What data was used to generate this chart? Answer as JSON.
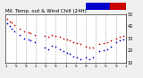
{
  "title": "Mil. Temp. out & Wind Chill (24H)",
  "background_color": "#f0f0f0",
  "plot_bg_color": "#ffffff",
  "grid_color": "#aaaaaa",
  "ylim": [
    10,
    50
  ],
  "xlim": [
    0,
    48
  ],
  "ylabel_fontsize": 3.5,
  "xlabel_fontsize": 3.0,
  "title_fontsize": 4.0,
  "legend_blue": "#0000cc",
  "legend_red": "#cc0000",
  "temp_color": "#cc0000",
  "windchill_color": "#0000cc",
  "temp_points_x": [
    0.5,
    1.5,
    2.5,
    3.5,
    5.5,
    7.5,
    9.0,
    10.0,
    11.5,
    15.5,
    17.0,
    18.5,
    20.0,
    21.5,
    23.0,
    24.5,
    25.5,
    27.0,
    28.5,
    30.0,
    32.0,
    33.5,
    35.0,
    37.5,
    39.0,
    40.5,
    42.0,
    44.0,
    45.5,
    47.0
  ],
  "temp_points_y": [
    46,
    44,
    43,
    41,
    38,
    36,
    35,
    34,
    33,
    32,
    31,
    33,
    32,
    31,
    30,
    29,
    28,
    27,
    26,
    25,
    23,
    22,
    22,
    25,
    26,
    27,
    28,
    30,
    31,
    32
  ],
  "wc_points_x": [
    0.5,
    1.5,
    2.5,
    3.5,
    5.5,
    7.5,
    9.0,
    10.0,
    11.5,
    15.5,
    17.0,
    18.5,
    20.0,
    21.5,
    23.0,
    24.5,
    25.5,
    27.0,
    28.5,
    30.0,
    32.0,
    33.5,
    35.0,
    37.5,
    39.0,
    40.5,
    42.0,
    44.0,
    45.5,
    47.0
  ],
  "wc_points_y": [
    42,
    40,
    38,
    36,
    33,
    30,
    29,
    28,
    27,
    22,
    21,
    24,
    23,
    21,
    19,
    18,
    17,
    15,
    14,
    13,
    14,
    13,
    14,
    19,
    20,
    21,
    23,
    27,
    28,
    29
  ],
  "yticks": [
    10,
    20,
    30,
    40,
    50
  ],
  "xticks": [
    0,
    4,
    8,
    12,
    16,
    20,
    24,
    28,
    32,
    36,
    40,
    44,
    48
  ],
  "xtick_labels": [
    "1",
    "5",
    "9",
    "1",
    "5",
    "9",
    "1",
    "5",
    "9",
    "1",
    "5",
    "9",
    "1"
  ],
  "ytick_labels": [
    "10",
    "20",
    "30",
    "40",
    "50"
  ],
  "vgrid_xticks": [
    4,
    8,
    12,
    16,
    20,
    24,
    28,
    32,
    36,
    40,
    44
  ]
}
